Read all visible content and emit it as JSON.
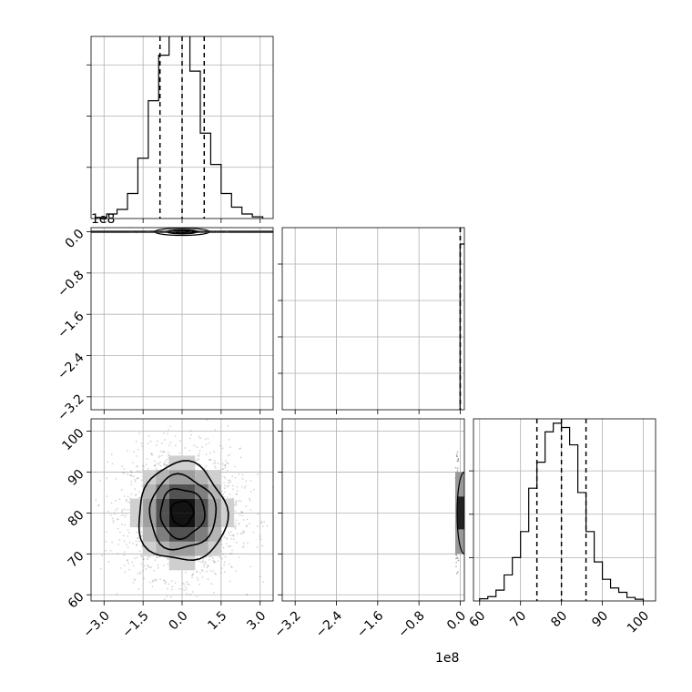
{
  "chart_data": {
    "type": "corner",
    "x_offset_label": "1e8",
    "y_offset_label": "1e8",
    "grid": true,
    "quantile_lines": true,
    "panels": [
      {
        "name": "p1-histogram",
        "type": "histogram",
        "xlim": [
          -3.5,
          3.5
        ],
        "ylim": [
          0,
          3200
        ],
        "bins": [
          -3.3,
          -2.9,
          -2.5,
          -2.1,
          -1.7,
          -1.3,
          -0.9,
          -0.5,
          -0.1,
          0.3,
          0.7,
          1.1,
          1.5,
          1.9,
          2.3,
          2.7,
          3.1
        ],
        "counts": [
          20,
          80,
          160,
          440,
          1060,
          2070,
          2870,
          3250,
          3270,
          2590,
          1500,
          950,
          440,
          200,
          80,
          30
        ],
        "quantiles": [
          -0.85,
          0.0,
          0.85
        ],
        "x_ticks": [
          -3.0,
          -1.5,
          0.0,
          1.5,
          3.0
        ]
      },
      {
        "name": "p2-histogram",
        "type": "histogram",
        "xlim": [
          -3.45,
          0.08
        ],
        "ylim": [
          0,
          10000
        ],
        "bins": [
          -3.45,
          -0.025,
          0.08
        ],
        "counts": [
          0,
          9500
        ],
        "quantiles": [
          -0.003,
          0.0,
          0.003
        ],
        "x_ticks": [
          -3.2,
          -2.4,
          -1.6,
          -0.8,
          0.0
        ],
        "x_tick_labels": [
          "−3.2",
          "−2.4",
          "−1.6",
          "−0.8",
          "0.0"
        ]
      },
      {
        "name": "p3-histogram",
        "type": "histogram",
        "xlim": [
          58.5,
          103
        ],
        "ylim": [
          0,
          4200
        ],
        "bins": [
          60.0,
          62.0,
          64.0,
          66.0,
          68.0,
          70.0,
          72.0,
          74.0,
          76.0,
          78.0,
          80.0,
          82.0,
          84.0,
          86.0,
          88.0,
          90.0,
          92.0,
          94.0,
          96.0,
          98.0,
          100.0
        ],
        "counts": [
          50,
          100,
          250,
          600,
          1000,
          1600,
          2600,
          3200,
          3900,
          4100,
          4000,
          3600,
          2500,
          1600,
          900,
          500,
          300,
          200,
          80,
          40
        ],
        "quantiles": [
          74.0,
          80.0,
          86.0
        ],
        "x_ticks": [
          60,
          70,
          80,
          90,
          100
        ]
      },
      {
        "name": "p1-vs-p2",
        "type": "2d-hist",
        "x_ticks": [
          -3.0,
          -1.5,
          0.0,
          1.5,
          3.0
        ],
        "y_ticks": [
          0.0,
          -0.8,
          -1.6,
          -2.4,
          -3.2
        ],
        "y_tick_labels": [
          "0.0",
          "−0.8",
          "−1.6",
          "−2.4",
          "−3.2"
        ],
        "xlim": [
          -3.5,
          3.5
        ],
        "ylim": [
          -3.45,
          0.08
        ]
      },
      {
        "name": "p1-vs-p3",
        "type": "2d-hist",
        "x_ticks": [
          -3.0,
          -1.5,
          0.0,
          1.5,
          3.0
        ],
        "x_tick_labels": [
          "−3.0",
          "−1.5",
          "0.0",
          "1.5",
          "3.0"
        ],
        "y_ticks": [
          60,
          70,
          80,
          90,
          100
        ],
        "xlim": [
          -3.5,
          3.5
        ],
        "ylim": [
          58.5,
          103
        ],
        "center": [
          0.0,
          80.0
        ],
        "sigma": [
          0.85,
          6.0
        ]
      },
      {
        "name": "p2-vs-p3",
        "type": "2d-hist",
        "xlim": [
          -3.45,
          0.08
        ],
        "ylim": [
          58.5,
          103
        ],
        "x_ticks": [
          -3.2,
          -2.4,
          -1.6,
          -0.8,
          0.0
        ],
        "y_ticks": [
          60,
          70,
          80,
          90,
          100
        ]
      }
    ]
  }
}
